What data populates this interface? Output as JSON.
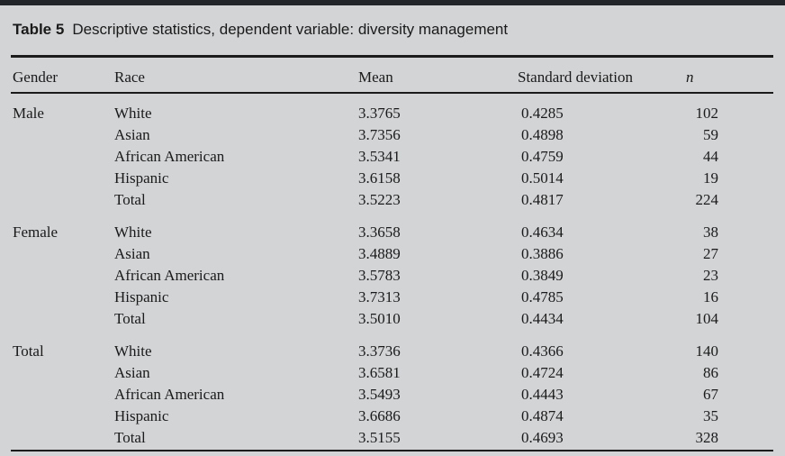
{
  "title": {
    "label": "Table 5",
    "caption": "Descriptive statistics, dependent variable: diversity management"
  },
  "columns": {
    "gender": "Gender",
    "race": "Race",
    "mean": "Mean",
    "sd": "Standard deviation",
    "n": "n"
  },
  "sections": [
    {
      "gender": "Male",
      "rows": [
        {
          "race": "White",
          "mean": "3.3765",
          "sd": "0.4285",
          "n": "102"
        },
        {
          "race": "Asian",
          "mean": "3.7356",
          "sd": "0.4898",
          "n": "59"
        },
        {
          "race": "African American",
          "mean": "3.5341",
          "sd": "0.4759",
          "n": "44"
        },
        {
          "race": "Hispanic",
          "mean": "3.6158",
          "sd": "0.5014",
          "n": "19"
        },
        {
          "race": "Total",
          "mean": "3.5223",
          "sd": "0.4817",
          "n": "224"
        }
      ]
    },
    {
      "gender": "Female",
      "rows": [
        {
          "race": "White",
          "mean": "3.3658",
          "sd": "0.4634",
          "n": "38"
        },
        {
          "race": "Asian",
          "mean": "3.4889",
          "sd": "0.3886",
          "n": "27"
        },
        {
          "race": "African American",
          "mean": "3.5783",
          "sd": "0.3849",
          "n": "23"
        },
        {
          "race": "Hispanic",
          "mean": "3.7313",
          "sd": "0.4785",
          "n": "16"
        },
        {
          "race": "Total",
          "mean": "3.5010",
          "sd": "0.4434",
          "n": "104"
        }
      ]
    },
    {
      "gender": "Total",
      "rows": [
        {
          "race": "White",
          "mean": "3.3736",
          "sd": "0.4366",
          "n": "140"
        },
        {
          "race": "Asian",
          "mean": "3.6581",
          "sd": "0.4724",
          "n": "86"
        },
        {
          "race": "African American",
          "mean": "3.5493",
          "sd": "0.4443",
          "n": "67"
        },
        {
          "race": "Hispanic",
          "mean": "3.6686",
          "sd": "0.4874",
          "n": "35"
        },
        {
          "race": "Total",
          "mean": "3.5155",
          "sd": "0.4693",
          "n": "328"
        }
      ]
    }
  ],
  "colors": {
    "background": "#d3d4d6",
    "text": "#1a1a1a",
    "rule": "#1b1b1b",
    "top_bar": "#22262a"
  }
}
